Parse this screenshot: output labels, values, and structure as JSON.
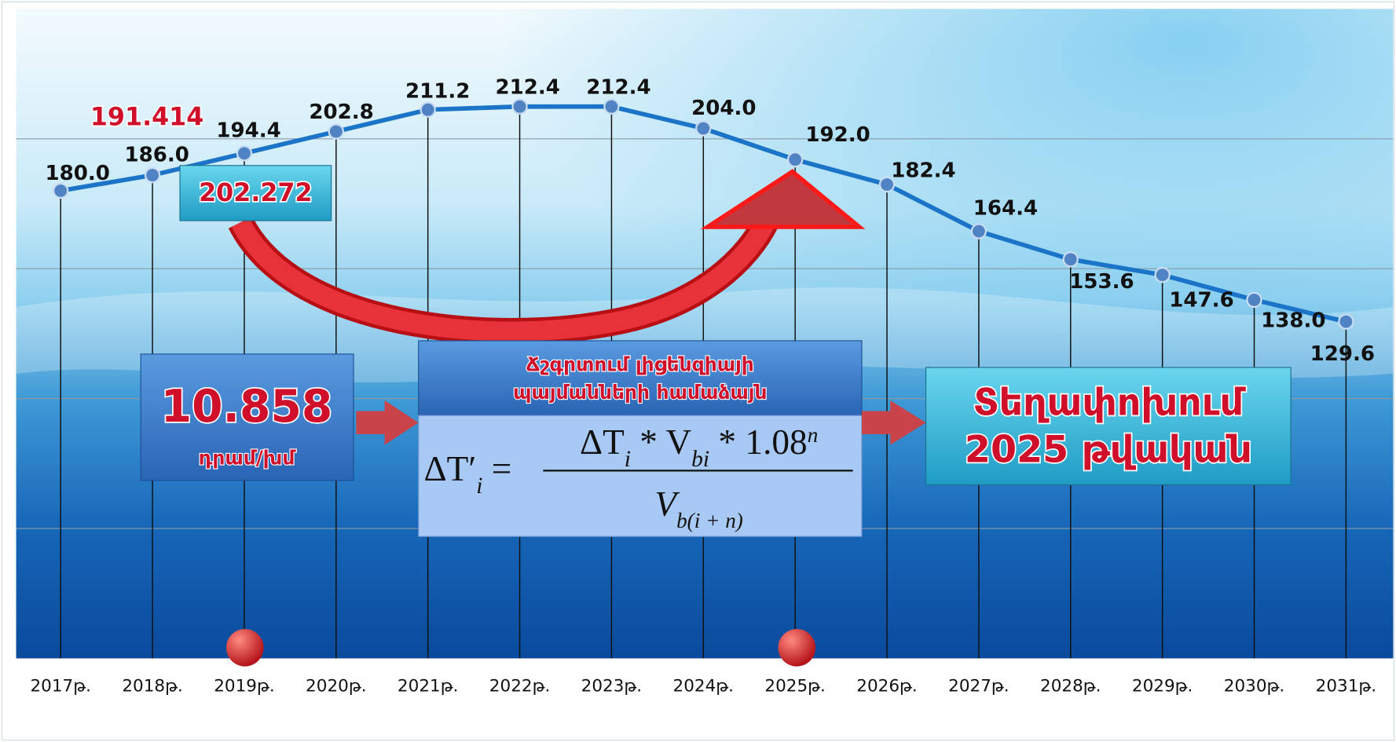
{
  "chart_data": {
    "type": "line",
    "categories": [
      "2017թ.",
      "2018թ.",
      "2019թ.",
      "2020թ.",
      "2021թ.",
      "2022թ.",
      "2023թ.",
      "2024թ.",
      "2025թ.",
      "2026թ.",
      "2027թ.",
      "2028թ.",
      "2029թ.",
      "2030թ.",
      "2031թ."
    ],
    "values": [
      180.0,
      186.0,
      194.4,
      202.8,
      211.2,
      212.4,
      212.4,
      204.0,
      192.0,
      182.4,
      164.4,
      153.6,
      147.6,
      138.0,
      129.6
    ],
    "value_labels": [
      "180.0",
      "186.0",
      "194.4",
      "202.8",
      "211.2",
      "212.4",
      "212.4",
      "204.0",
      "192.0",
      "182.4",
      "164.4",
      "153.6",
      "147.6",
      "138.0",
      "129.6"
    ],
    "color": "#1b74c8",
    "ylim": [
      0,
      250
    ],
    "yticks": [
      50,
      100,
      150,
      200
    ],
    "grid": true
  },
  "annotations": {
    "old_value": "191.414",
    "new_value": "202.272",
    "difference": {
      "value": "10.858",
      "unit": "դրամ/խմ"
    },
    "adjustment_note": [
      "Ճշգրտում լիցենզիայի",
      "պայմանների համաձայն"
    ],
    "formula": {
      "lhs": "ΔT′",
      "lhs_sub": "i",
      "equals": " =",
      "numerator": [
        "ΔT",
        "i",
        " * V",
        "bi",
        " * 1.08",
        "n"
      ],
      "denominator": [
        "V",
        "b(i + n)"
      ]
    },
    "transfer": [
      "Տեղափոխում",
      "2025 թվական"
    ]
  }
}
